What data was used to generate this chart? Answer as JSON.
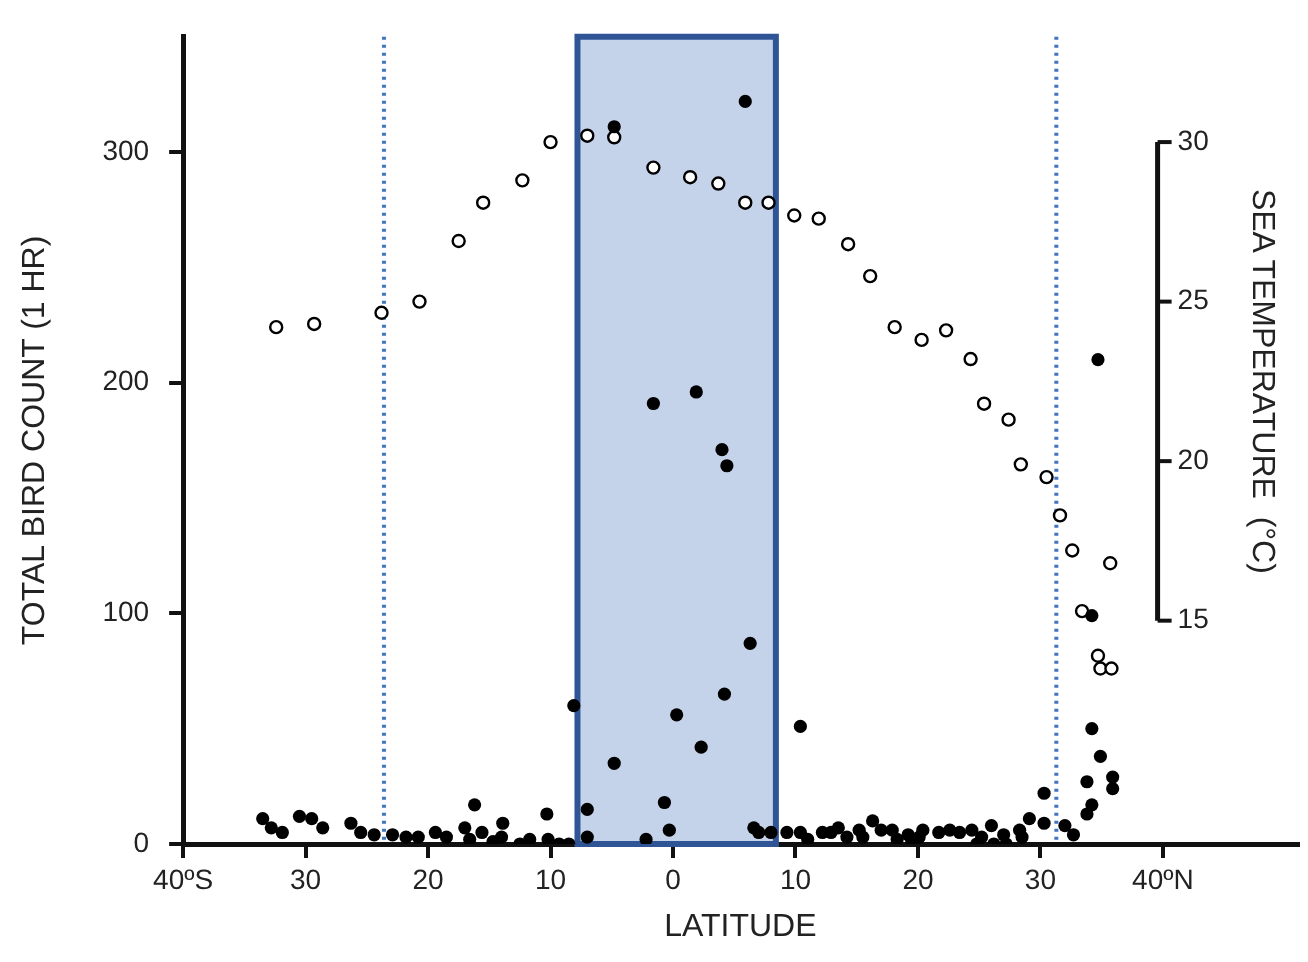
{
  "chart_data": {
    "type": "scatter",
    "xlabel": "LATITUDE",
    "ylabel": "TOTAL BIRD COUNT (1 HR)",
    "y2label": "SEA TEMPERATURE  (°C)",
    "xlim": [
      -40,
      51
    ],
    "xticks": [
      {
        "value": -40,
        "label": "40ºS"
      },
      {
        "value": -30,
        "label": "30"
      },
      {
        "value": -20,
        "label": "20"
      },
      {
        "value": -10,
        "label": "10"
      },
      0,
      {
        "value": 10,
        "label": "10"
      },
      {
        "value": 20,
        "label": "20"
      },
      {
        "value": 30,
        "label": "30"
      },
      {
        "value": 40,
        "label": "40ºN"
      }
    ],
    "ylim": [
      0,
      350
    ],
    "yticks": [
      0,
      100,
      200,
      300
    ],
    "y2lim": [
      8,
      33.3
    ],
    "y2ticks": [
      15,
      20,
      25,
      30
    ],
    "grid": false,
    "legend": false,
    "marker": "circle",
    "bands": [
      {
        "axis": "x",
        "from": -7.8,
        "to": 8.4,
        "color": "#c5d3ea"
      }
    ],
    "ref_lines": [
      {
        "axis": "x",
        "value": -23.6,
        "color": "#4472c4",
        "line_style": "dotted"
      },
      {
        "axis": "x",
        "value": 31.3,
        "color": "#4472c4",
        "line_style": "dotted"
      }
    ],
    "series": [
      {
        "color": "#000000",
        "x": [
          -33.5,
          -32.8,
          -31.9,
          -30.5,
          -29.5,
          -28.6,
          -26.3,
          -25.5,
          -24.4,
          -22.9,
          -21.8,
          -20.8,
          -19.4,
          -18.5,
          -17.0,
          -16.2,
          -16.6,
          -15.6,
          -14.7,
          -13.9,
          -14.0,
          -12.5,
          -11.7,
          -10.3,
          -10.2,
          -9.3,
          -8.5,
          -8.1,
          -7.0,
          -7.0,
          -4.8,
          -4.8,
          -2.2,
          -1.6,
          -0.7,
          -0.3,
          0.3,
          1.9,
          2.3,
          4.0,
          4.4,
          4.2,
          5.9,
          6.3,
          6.6,
          7.0,
          8.0,
          9.3,
          10.4,
          10.4,
          11.0,
          12.2,
          12.9,
          13.5,
          14.2,
          15.2,
          15.5,
          16.3,
          17.0,
          17.9,
          18.3,
          19.2,
          19.5,
          20.4,
          20.1,
          21.7,
          22.6,
          23.4,
          24.4,
          24.8,
          25.2,
          26.0,
          26.2,
          27.0,
          27.2,
          28.3,
          28.5,
          29.1,
          30.3,
          30.3,
          32.0,
          32.7,
          33.8,
          33.8,
          34.2,
          34.2,
          34.2,
          34.7,
          34.9,
          35.9,
          35.9
        ],
        "values": [
          11,
          7,
          5,
          12,
          11,
          7,
          9,
          5,
          4,
          4,
          3,
          3,
          5,
          3,
          7,
          17,
          2,
          5,
          1,
          9,
          3,
          0,
          2,
          13,
          2,
          0,
          0,
          60,
          15,
          3,
          35,
          311,
          2,
          191,
          18,
          6,
          56,
          196,
          42,
          171,
          164,
          65,
          322,
          87,
          7,
          5,
          5,
          5,
          51,
          5,
          2,
          5,
          5,
          7,
          3,
          6,
          3,
          10,
          6,
          6,
          2,
          4,
          1,
          6,
          3,
          5,
          6,
          5,
          6,
          0,
          3,
          8,
          0,
          4,
          0,
          6,
          3,
          11,
          22,
          9,
          8,
          4,
          27,
          13,
          50,
          17,
          99,
          210,
          38,
          29,
          24
        ]
      },
      {
        "color": "#000000",
        "axis": "y2",
        "x": [
          -32.4,
          -29.3,
          -23.8,
          -20.7,
          -17.5,
          -15.5,
          -12.3,
          -10.0,
          -7.0,
          -4.8,
          -1.6,
          1.4,
          3.7,
          5.9,
          7.8,
          9.9,
          11.9,
          14.3,
          16.1,
          18.1,
          20.3,
          22.3,
          24.3,
          25.4,
          27.4,
          28.4,
          30.5,
          31.6,
          32.6,
          35.7,
          33.4,
          34.7,
          34.9,
          35.8
        ],
        "values": [
          24.2,
          24.3,
          24.65,
          25.0,
          26.9,
          28.1,
          28.8,
          30.0,
          30.2,
          30.15,
          29.2,
          28.9,
          28.7,
          28.1,
          28.1,
          27.7,
          27.6,
          26.8,
          25.8,
          24.2,
          23.8,
          24.1,
          23.2,
          21.8,
          21.3,
          19.9,
          19.5,
          18.3,
          17.2,
          16.8,
          15.3,
          13.9,
          13.5,
          13.5
        ]
      }
    ]
  }
}
